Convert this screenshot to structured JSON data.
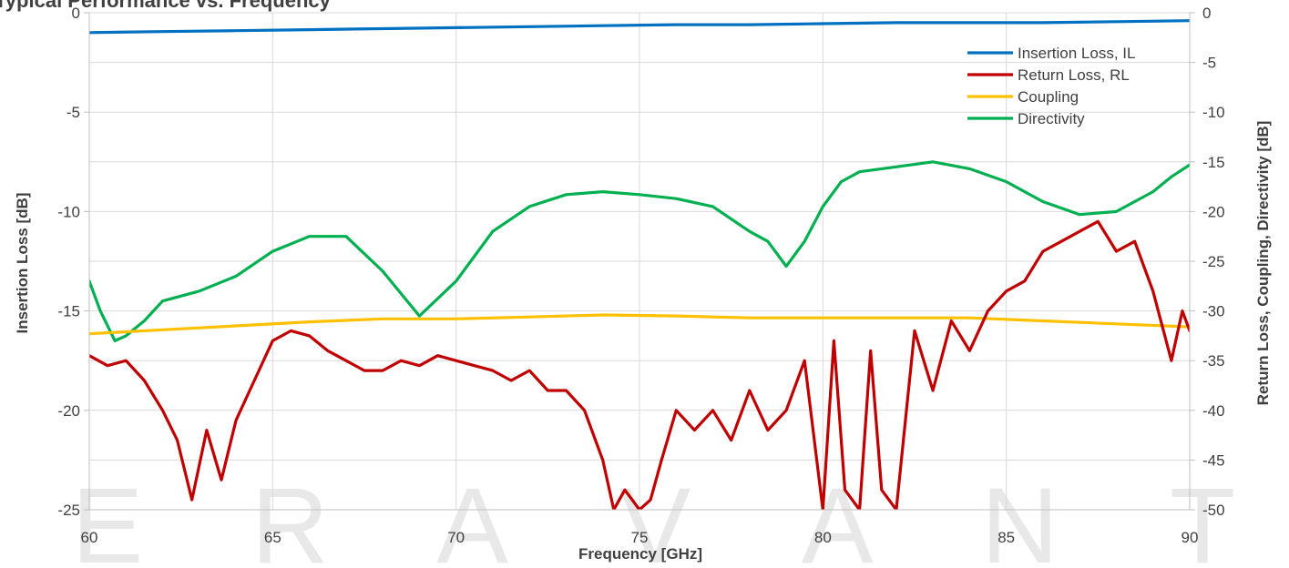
{
  "chart_data": {
    "type": "line",
    "title": "Typical Performance vs. Frequency",
    "xlabel": "Frequency [GHz]",
    "ylabel_left": "Insertion Loss [dB]",
    "ylabel_right": "Return Loss, Coupling, Directivity [dB]",
    "xlim": [
      60,
      90
    ],
    "ylim_left": [
      -25,
      0
    ],
    "ylim_right": [
      -50,
      0
    ],
    "x_ticks": [
      "60",
      "65",
      "70",
      "75",
      "80",
      "85",
      "90"
    ],
    "y_left_ticks": [
      "0",
      "-5",
      "-10",
      "-15",
      "-20",
      "-25"
    ],
    "y_right_ticks": [
      "0",
      "-5",
      "-10",
      "-15",
      "-20",
      "-25",
      "-30",
      "-35",
      "-40",
      "-45",
      "-50"
    ],
    "grid": true,
    "legend_position": "top-right",
    "watermark": "ERAVANT",
    "series": [
      {
        "name": "Insertion Loss, IL",
        "axis": "left",
        "color": "#0070C0",
        "x": [
          60,
          62,
          64,
          66,
          68,
          70,
          72,
          74,
          76,
          78,
          80,
          82,
          84,
          86,
          88,
          90
        ],
        "values": [
          -1.0,
          -0.95,
          -0.9,
          -0.85,
          -0.8,
          -0.75,
          -0.7,
          -0.65,
          -0.6,
          -0.6,
          -0.55,
          -0.5,
          -0.5,
          -0.5,
          -0.45,
          -0.4
        ]
      },
      {
        "name": "Return Loss, RL",
        "axis": "right",
        "color": "#C00000",
        "x": [
          60,
          60.5,
          61,
          61.5,
          62,
          62.4,
          62.8,
          63.2,
          63.6,
          64,
          64.5,
          65,
          65.5,
          66,
          66.5,
          67,
          67.5,
          68,
          68.5,
          69,
          69.5,
          70,
          70.5,
          71,
          71.5,
          72,
          72.5,
          73,
          73.5,
          74,
          74.3,
          74.6,
          75,
          75.3,
          75.6,
          76,
          76.5,
          77,
          77.5,
          78,
          78.5,
          79,
          79.5,
          80,
          80.3,
          80.6,
          81,
          81.3,
          81.6,
          82,
          82.5,
          83,
          83.5,
          84,
          84.5,
          85,
          85.5,
          86,
          86.5,
          87,
          87.5,
          88,
          88.5,
          89,
          89.5,
          89.8,
          90
        ],
        "values": [
          -34.5,
          -35.5,
          -35,
          -37,
          -40,
          -43,
          -49,
          -42,
          -47,
          -41,
          -37,
          -33,
          -32,
          -32.5,
          -34,
          -35,
          -36,
          -36,
          -35,
          -35.5,
          -34.5,
          -35,
          -35.5,
          -36,
          -37,
          -36,
          -38,
          -38,
          -40,
          -45,
          -50,
          -48,
          -50,
          -49,
          -45,
          -40,
          -42,
          -40,
          -43,
          -38,
          -42,
          -40,
          -35,
          -50,
          -33,
          -48,
          -50,
          -34,
          -48,
          -50,
          -32,
          -38,
          -31,
          -34,
          -30,
          -28,
          -27,
          -24,
          -23,
          -22,
          -21,
          -24,
          -23,
          -28,
          -35,
          -30,
          -32
        ]
      },
      {
        "name": "Coupling",
        "axis": "right",
        "color": "#FFC000",
        "x": [
          60,
          62,
          64,
          66,
          68,
          70,
          72,
          74,
          76,
          78,
          80,
          82,
          84,
          86,
          88,
          90
        ],
        "values": [
          -32.3,
          -31.9,
          -31.5,
          -31.1,
          -30.8,
          -30.8,
          -30.6,
          -30.4,
          -30.5,
          -30.7,
          -30.7,
          -30.7,
          -30.7,
          -31.0,
          -31.3,
          -31.6
        ]
      },
      {
        "name": "Directivity",
        "axis": "right",
        "color": "#00B050",
        "x": [
          60,
          60.3,
          60.7,
          61,
          61.5,
          62,
          63,
          64,
          65,
          66,
          67,
          68,
          69,
          70,
          71,
          72,
          73,
          74,
          75,
          76,
          77,
          78,
          78.5,
          79,
          79.5,
          80,
          80.5,
          81,
          82,
          83,
          84,
          85,
          86,
          87,
          88,
          89,
          89.5,
          90
        ],
        "values": [
          -27,
          -30,
          -33,
          -32.5,
          -31,
          -29,
          -28,
          -26.5,
          -24,
          -22.5,
          -22.5,
          -26,
          -30.5,
          -27,
          -22,
          -19.5,
          -18.3,
          -18,
          -18.3,
          -18.7,
          -19.5,
          -22,
          -23,
          -25.5,
          -23,
          -19.5,
          -17,
          -16,
          -15.5,
          -15,
          -15.7,
          -17,
          -19,
          -20.3,
          -20,
          -18,
          -16.5,
          -15.3
        ]
      }
    ]
  }
}
